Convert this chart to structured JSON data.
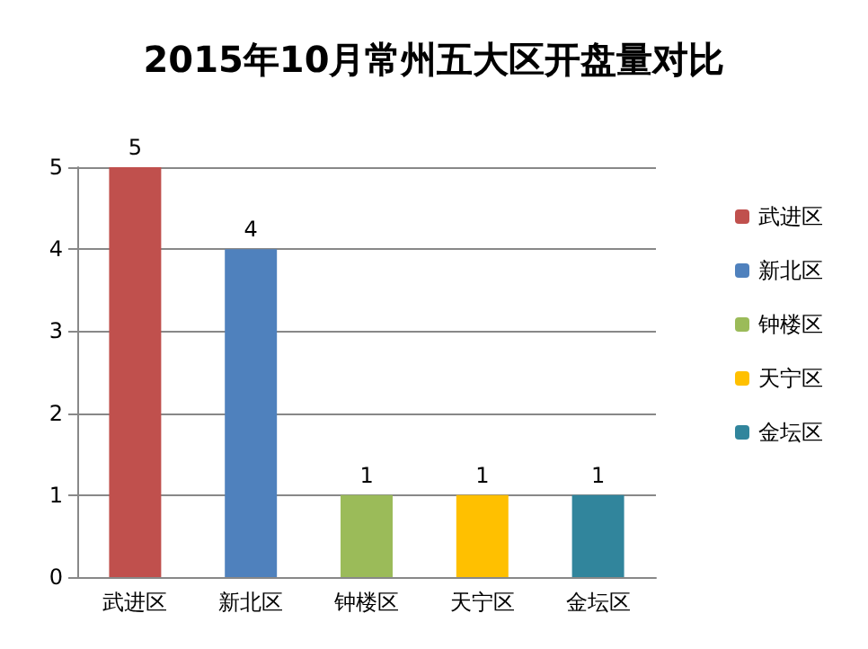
{
  "chart_data": {
    "type": "bar",
    "title": "2015年10月常州五大区开盘量对比",
    "categories": [
      "武进区",
      "新北区",
      "钟楼区",
      "天宁区",
      "金坛区"
    ],
    "series": [
      {
        "name": "武进区",
        "color": "#c0504d",
        "values": [
          5,
          null,
          null,
          null,
          null
        ]
      },
      {
        "name": "新北区",
        "color": "#4f81bd",
        "values": [
          null,
          4,
          null,
          null,
          null
        ]
      },
      {
        "name": "钟楼区",
        "color": "#9bbb59",
        "values": [
          null,
          null,
          1,
          null,
          null
        ]
      },
      {
        "name": "天宁区",
        "color": "#ffc000",
        "values": [
          null,
          null,
          null,
          1,
          null
        ]
      },
      {
        "name": "金坛区",
        "color": "#31859c",
        "values": [
          null,
          null,
          null,
          null,
          1
        ]
      }
    ],
    "ylim": [
      0,
      5
    ],
    "yticks": [
      0,
      1,
      2,
      3,
      4,
      5
    ],
    "grid": "y",
    "legend": "right",
    "data_labels": true
  }
}
